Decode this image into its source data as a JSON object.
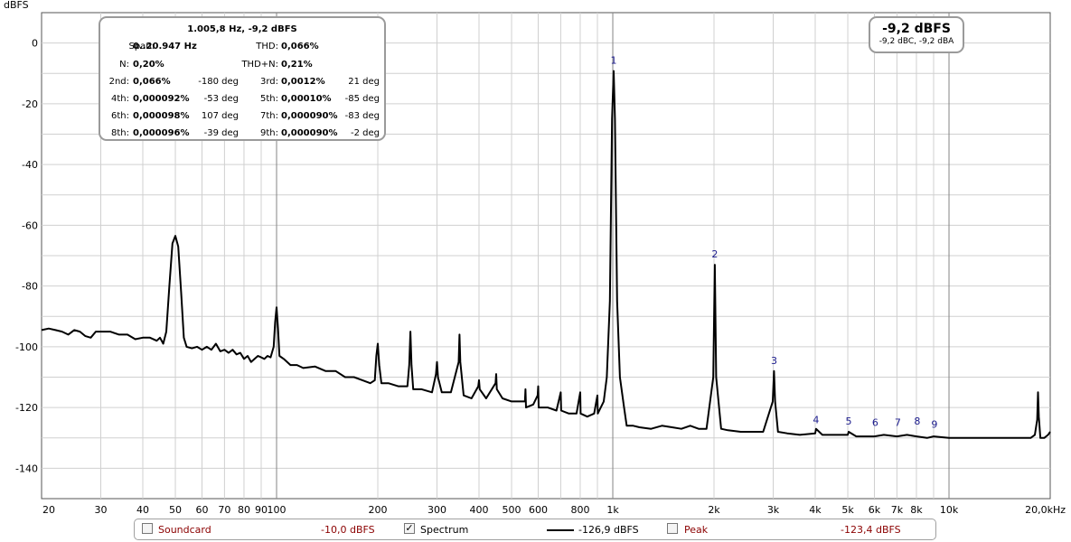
{
  "chart_data": {
    "type": "line",
    "ylabel": "dBFS",
    "xscale": "log",
    "xlim": [
      20,
      20000
    ],
    "ylim": [
      -150,
      10
    ],
    "grid": true,
    "yticks": [
      0,
      -20,
      -40,
      -60,
      -80,
      -100,
      -120,
      -140
    ],
    "xticks": [
      {
        "v": 20,
        "label": "20"
      },
      {
        "v": 30,
        "label": "30"
      },
      {
        "v": 40,
        "label": "40"
      },
      {
        "v": 50,
        "label": "50"
      },
      {
        "v": 60,
        "label": "60"
      },
      {
        "v": 70,
        "label": "70"
      },
      {
        "v": 80,
        "label": "80"
      },
      {
        "v": 90,
        "label": "90"
      },
      {
        "v": 100,
        "label": "100"
      },
      {
        "v": 200,
        "label": "200"
      },
      {
        "v": 300,
        "label": "300"
      },
      {
        "v": 400,
        "label": "400"
      },
      {
        "v": 500,
        "label": "500"
      },
      {
        "v": 600,
        "label": "600"
      },
      {
        "v": 800,
        "label": "800"
      },
      {
        "v": 1000,
        "label": "1k"
      },
      {
        "v": 2000,
        "label": "2k"
      },
      {
        "v": 3000,
        "label": "3k"
      },
      {
        "v": 4000,
        "label": "4k"
      },
      {
        "v": 5000,
        "label": "5k"
      },
      {
        "v": 6000,
        "label": "6k"
      },
      {
        "v": 7000,
        "label": "7k"
      },
      {
        "v": 8000,
        "label": "8k"
      },
      {
        "v": 10000,
        "label": "10k"
      },
      {
        "v": 20000,
        "label": "20,0kHz"
      }
    ],
    "series": [
      {
        "color": "#000000",
        "points": [
          [
            20,
            -94.5
          ],
          [
            21,
            -94
          ],
          [
            22,
            -94.5
          ],
          [
            23,
            -95
          ],
          [
            24,
            -96
          ],
          [
            25,
            -94.5
          ],
          [
            26,
            -95
          ],
          [
            27,
            -96.5
          ],
          [
            28,
            -97
          ],
          [
            29,
            -95
          ],
          [
            30,
            -95
          ],
          [
            32,
            -95
          ],
          [
            34,
            -96
          ],
          [
            36,
            -96
          ],
          [
            38,
            -97.5
          ],
          [
            40,
            -97
          ],
          [
            42,
            -97
          ],
          [
            44,
            -98
          ],
          [
            45,
            -97
          ],
          [
            46,
            -99
          ],
          [
            47,
            -95
          ],
          [
            48,
            -80
          ],
          [
            49,
            -66
          ],
          [
            50,
            -63.5
          ],
          [
            51,
            -67
          ],
          [
            52,
            -82
          ],
          [
            53,
            -97
          ],
          [
            54,
            -100
          ],
          [
            56,
            -100.5
          ],
          [
            58,
            -100
          ],
          [
            60,
            -101
          ],
          [
            62,
            -100
          ],
          [
            64,
            -101
          ],
          [
            66,
            -99
          ],
          [
            68,
            -101.5
          ],
          [
            70,
            -101
          ],
          [
            72,
            -102
          ],
          [
            74,
            -101
          ],
          [
            76,
            -102.5
          ],
          [
            78,
            -102
          ],
          [
            80,
            -104
          ],
          [
            82,
            -103
          ],
          [
            84,
            -105
          ],
          [
            86,
            -104
          ],
          [
            88,
            -103
          ],
          [
            90,
            -103.5
          ],
          [
            92,
            -104
          ],
          [
            94,
            -103
          ],
          [
            96,
            -103.5
          ],
          [
            98,
            -100
          ],
          [
            99,
            -92
          ],
          [
            100,
            -87
          ],
          [
            101,
            -94
          ],
          [
            102,
            -103
          ],
          [
            105,
            -104
          ],
          [
            110,
            -106
          ],
          [
            115,
            -106
          ],
          [
            120,
            -107
          ],
          [
            130,
            -106.5
          ],
          [
            140,
            -108
          ],
          [
            150,
            -108
          ],
          [
            160,
            -110
          ],
          [
            170,
            -110
          ],
          [
            180,
            -111
          ],
          [
            190,
            -112
          ],
          [
            196,
            -111
          ],
          [
            198,
            -103
          ],
          [
            200,
            -99
          ],
          [
            202,
            -106
          ],
          [
            205,
            -112
          ],
          [
            215,
            -112
          ],
          [
            230,
            -113
          ],
          [
            245,
            -113
          ],
          [
            248,
            -106
          ],
          [
            250,
            -95
          ],
          [
            252,
            -106
          ],
          [
            255,
            -114
          ],
          [
            270,
            -114
          ],
          [
            290,
            -115
          ],
          [
            298,
            -109
          ],
          [
            300,
            -105
          ],
          [
            302,
            -110
          ],
          [
            310,
            -115
          ],
          [
            330,
            -115
          ],
          [
            348,
            -105
          ],
          [
            350,
            -96
          ],
          [
            352,
            -105
          ],
          [
            360,
            -116
          ],
          [
            380,
            -117
          ],
          [
            398,
            -113
          ],
          [
            400,
            -111
          ],
          [
            402,
            -114
          ],
          [
            420,
            -117
          ],
          [
            448,
            -112
          ],
          [
            450,
            -109
          ],
          [
            452,
            -114
          ],
          [
            470,
            -117
          ],
          [
            500,
            -118
          ],
          [
            548,
            -118
          ],
          [
            550,
            -114
          ],
          [
            552,
            -120
          ],
          [
            580,
            -119
          ],
          [
            598,
            -116
          ],
          [
            600,
            -113
          ],
          [
            602,
            -120
          ],
          [
            640,
            -120
          ],
          [
            680,
            -121
          ],
          [
            700,
            -115
          ],
          [
            702,
            -121
          ],
          [
            740,
            -122
          ],
          [
            780,
            -122
          ],
          [
            800,
            -115
          ],
          [
            802,
            -122
          ],
          [
            840,
            -123
          ],
          [
            880,
            -122
          ],
          [
            900,
            -116
          ],
          [
            902,
            -122
          ],
          [
            940,
            -118
          ],
          [
            960,
            -110
          ],
          [
            980,
            -85
          ],
          [
            995,
            -25
          ],
          [
            1005.8,
            -9.2
          ],
          [
            1015,
            -25
          ],
          [
            1030,
            -85
          ],
          [
            1050,
            -110
          ],
          [
            1080,
            -120
          ],
          [
            1100,
            -126
          ],
          [
            1150,
            -126
          ],
          [
            1200,
            -126.5
          ],
          [
            1300,
            -127
          ],
          [
            1400,
            -126
          ],
          [
            1500,
            -126.5
          ],
          [
            1600,
            -127
          ],
          [
            1700,
            -126
          ],
          [
            1800,
            -127
          ],
          [
            1900,
            -127
          ],
          [
            1990,
            -110
          ],
          [
            2011.6,
            -73
          ],
          [
            2030,
            -110
          ],
          [
            2100,
            -127
          ],
          [
            2200,
            -127.5
          ],
          [
            2400,
            -128
          ],
          [
            2600,
            -128
          ],
          [
            2800,
            -128
          ],
          [
            2990,
            -118
          ],
          [
            3017.4,
            -108
          ],
          [
            3040,
            -118
          ],
          [
            3100,
            -128
          ],
          [
            3300,
            -128.5
          ],
          [
            3600,
            -129
          ],
          [
            4000,
            -128.5
          ],
          [
            4023,
            -127
          ],
          [
            4200,
            -129
          ],
          [
            4600,
            -129
          ],
          [
            5000,
            -129
          ],
          [
            5029,
            -128
          ],
          [
            5300,
            -129.5
          ],
          [
            6000,
            -129.5
          ],
          [
            6400,
            -129
          ],
          [
            7000,
            -129.5
          ],
          [
            7500,
            -129
          ],
          [
            8000,
            -129.5
          ],
          [
            8600,
            -130
          ],
          [
            9000,
            -129.5
          ],
          [
            10000,
            -130
          ],
          [
            12000,
            -130
          ],
          [
            14000,
            -130
          ],
          [
            16000,
            -130
          ],
          [
            17500,
            -130
          ],
          [
            18000,
            -129
          ],
          [
            18300,
            -124
          ],
          [
            18400,
            -115
          ],
          [
            18500,
            -123
          ],
          [
            18700,
            -130
          ],
          [
            19200,
            -130
          ],
          [
            19700,
            -129
          ],
          [
            20000,
            -128
          ]
        ]
      }
    ],
    "markers": [
      {
        "label": "1",
        "x": 1005.8,
        "y": -9.2
      },
      {
        "label": "2",
        "x": 2011.6,
        "y": -73
      },
      {
        "label": "3",
        "x": 3017.4,
        "y": -108
      },
      {
        "label": "4",
        "x": 4023.2,
        "y": -127.5
      },
      {
        "label": "5",
        "x": 5029,
        "y": -128
      },
      {
        "label": "6",
        "x": 6034.8,
        "y": -128.5
      },
      {
        "label": "7",
        "x": 7040.6,
        "y": -128.5
      },
      {
        "label": "8",
        "x": 8046.4,
        "y": -128
      },
      {
        "label": "9",
        "x": 9052.2,
        "y": -129
      }
    ]
  },
  "stats": {
    "title": "1.005,8 Hz, -9,2 dBFS",
    "span_label": "Span:",
    "span_value": "0..20.947 Hz",
    "thd_label": "THD:",
    "thd_value": "0,066%",
    "n_label": "N:",
    "n_value": "0,20%",
    "thdn_label": "THD+N:",
    "thdn_value": "0,21%",
    "harmonics": [
      {
        "label": "2nd:",
        "value": "0,066%",
        "phase": "-180 deg"
      },
      {
        "label": "3rd:",
        "value": "0,0012%",
        "phase": "21 deg"
      },
      {
        "label": "4th:",
        "value": "0,000092%",
        "phase": "-53 deg"
      },
      {
        "label": "5th:",
        "value": "0,00010%",
        "phase": "-85 deg"
      },
      {
        "label": "6th:",
        "value": "0,000098%",
        "phase": "107 deg"
      },
      {
        "label": "7th:",
        "value": "0,000090%",
        "phase": "-83 deg"
      },
      {
        "label": "8th:",
        "value": "0,000096%",
        "phase": "-39 deg"
      },
      {
        "label": "9th:",
        "value": "0,000090%",
        "phase": "-2 deg"
      }
    ]
  },
  "level": {
    "main": "-9,2 dBFS",
    "sub": "-9,2 dBC, -9,2 dBA"
  },
  "legend": {
    "soundcard_label": "Soundcard",
    "soundcard_value": "-10,0 dBFS",
    "soundcard_checked": false,
    "spectrum_label": "Spectrum",
    "spectrum_value": "-126,9 dBFS",
    "spectrum_checked": true,
    "peak_label": "Peak",
    "peak_value": "-123,4 dBFS",
    "peak_checked": false,
    "check_glyph": "✓"
  }
}
